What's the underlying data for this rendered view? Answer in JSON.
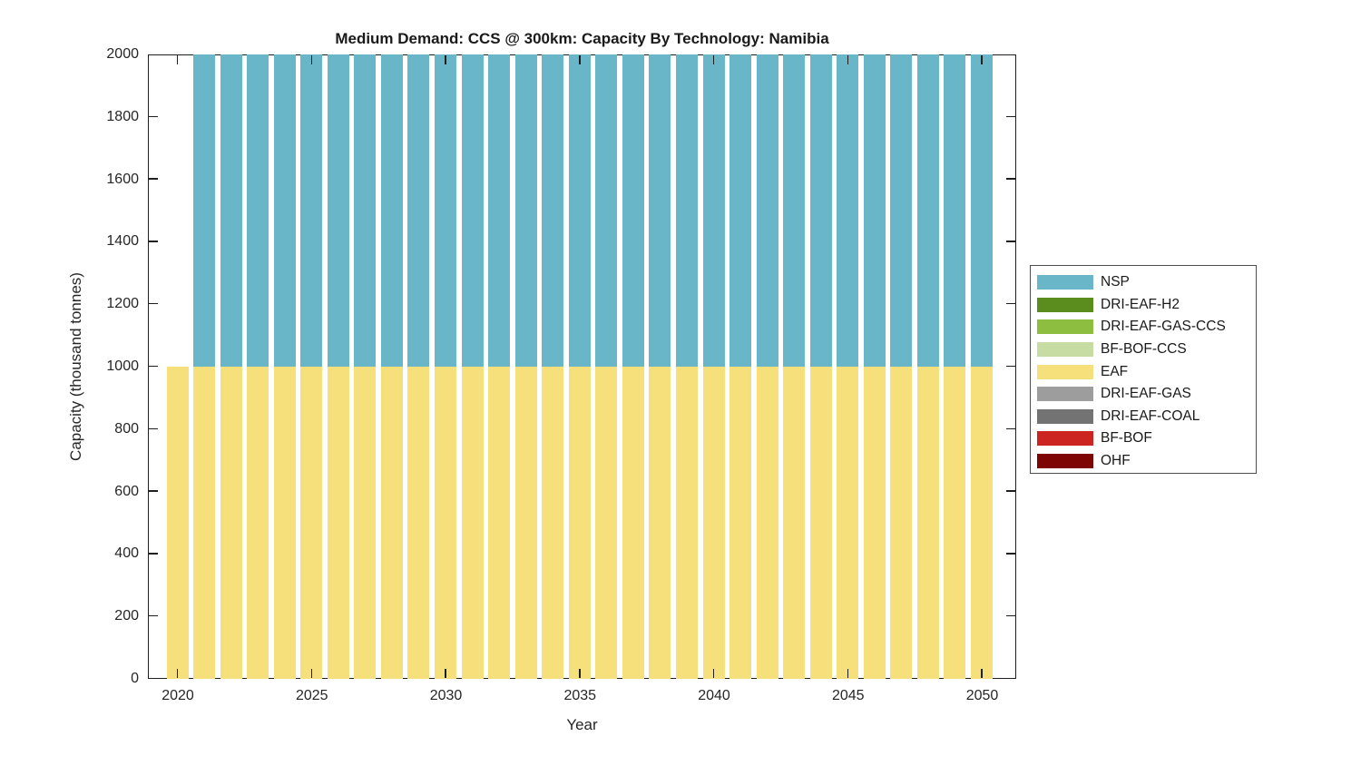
{
  "chart_data": {
    "type": "bar",
    "stacked": true,
    "title": "Medium Demand: CCS @ 300km: Capacity By Technology: Namibia",
    "xlabel": "Year",
    "ylabel": "Capacity (thousand tonnes)",
    "ylim": [
      0,
      2000
    ],
    "xlim": [
      2018.9,
      2051.5
    ],
    "grid": false,
    "x_ticks": [
      2020,
      2025,
      2030,
      2035,
      2040,
      2045,
      2050
    ],
    "y_ticks": [
      0,
      200,
      400,
      600,
      800,
      1000,
      1200,
      1400,
      1600,
      1800,
      2000
    ],
    "years": [
      2020,
      2021,
      2022,
      2023,
      2024,
      2025,
      2026,
      2027,
      2028,
      2029,
      2030,
      2031,
      2032,
      2033,
      2034,
      2035,
      2036,
      2037,
      2038,
      2039,
      2040,
      2041,
      2042,
      2043,
      2044,
      2045,
      2046,
      2047,
      2048,
      2049,
      2050
    ],
    "series": [
      {
        "name": "EAF",
        "color": "#F6E07C",
        "values": [
          1000,
          1000,
          1000,
          1000,
          1000,
          1000,
          1000,
          1000,
          1000,
          1000,
          1000,
          1000,
          1000,
          1000,
          1000,
          1000,
          1000,
          1000,
          1000,
          1000,
          1000,
          1000,
          1000,
          1000,
          1000,
          1000,
          1000,
          1000,
          1000,
          1000,
          1000
        ]
      },
      {
        "name": "NSP",
        "color": "#69B6C8",
        "values": [
          0,
          1000,
          1000,
          1000,
          1000,
          1000,
          1000,
          1000,
          1000,
          1000,
          1000,
          1000,
          1000,
          1000,
          1000,
          1000,
          1000,
          1000,
          1000,
          1000,
          1000,
          1000,
          1000,
          1000,
          1000,
          1000,
          1000,
          1000,
          1000,
          1000,
          1000
        ],
        "note": "NSP segments rise from 1000 to the top of the axis; bars are clipped at ylim 2000"
      }
    ],
    "legend": {
      "position": "right",
      "entries": [
        {
          "label": "NSP",
          "color": "#69B6C8"
        },
        {
          "label": "DRI-EAF-H2",
          "color": "#5A8C1E"
        },
        {
          "label": "DRI-EAF-GAS-CCS",
          "color": "#8DBE3F"
        },
        {
          "label": "BF-BOF-CCS",
          "color": "#C6DCA2"
        },
        {
          "label": "EAF",
          "color": "#F6E07C"
        },
        {
          "label": "DRI-EAF-GAS",
          "color": "#9D9D9D"
        },
        {
          "label": "DRI-EAF-COAL",
          "color": "#737373"
        },
        {
          "label": "BF-BOF",
          "color": "#CC2420"
        },
        {
          "label": "OHF",
          "color": "#7D0605"
        }
      ]
    }
  }
}
